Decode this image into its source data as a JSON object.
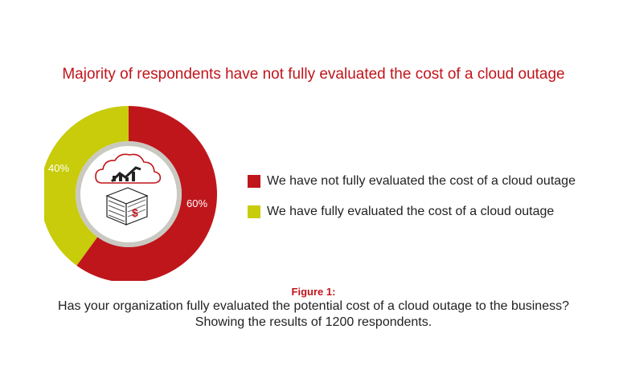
{
  "title": "Majority of respondents have not fully evaluated the cost of a cloud outage",
  "colors": {
    "red": "#bf161c",
    "yellow": "#c8cc0a",
    "ring_grey": "#c9c9c2"
  },
  "chart_data": {
    "type": "pie",
    "title": "Majority of respondents have not fully evaluated the cost of a cloud outage",
    "slices": [
      {
        "label": "We have not fully evaluated the cost of a cloud outage",
        "value": 60,
        "display": "60%",
        "color": "#bf161c"
      },
      {
        "label": "We have fully evaluated the cost of a cloud outage",
        "value": 40,
        "display": "40%",
        "color": "#c8cc0a"
      }
    ],
    "legend_position": "right"
  },
  "caption": {
    "figure_label": "Figure 1:",
    "question": "Has your organization fully evaluated the potential cost of a cloud outage to the business?",
    "subtext": "Showing the results of 1200 respondents."
  },
  "icons": [
    "cloud-chart-icon",
    "money-stack-icon"
  ]
}
